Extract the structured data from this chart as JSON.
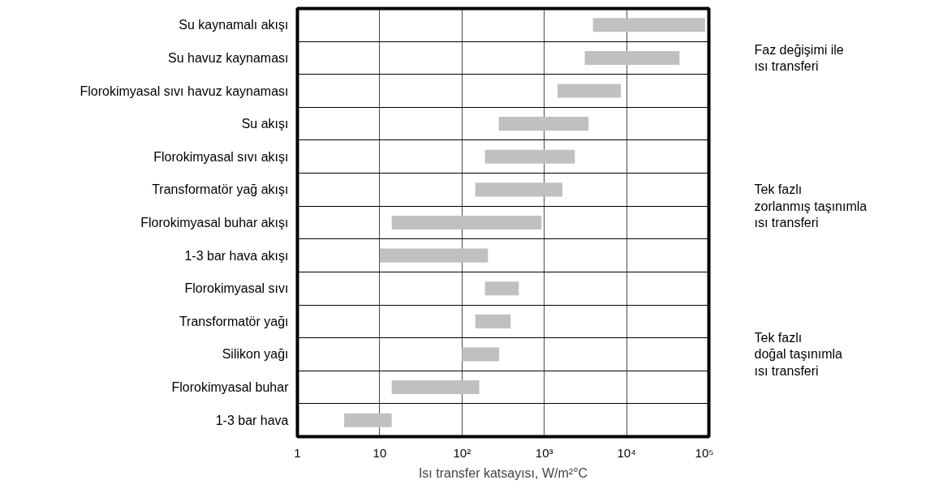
{
  "chart_data": {
    "type": "bar",
    "orientation": "horizontal",
    "log": "x",
    "xlabel": "Isı transfer katsayısı, W/m²°C",
    "categories": [
      "Su kaynamalı akışı",
      "Su havuz kaynaması",
      "Florokimyasal sıvı havuz kaynaması",
      "Su akışı",
      "Florokimyasal sıvı akışı",
      "Transformatör yağ akışı",
      "Florokimyasal buhar akışı",
      "1-3 bar hava akışı",
      "Florokimyasal sıvı",
      "Transformatör yağı",
      "Silikon yağı",
      "Florokimyasal buhar",
      "1-3 bar hava"
    ],
    "base": [
      3900,
      3100,
      1450,
      280,
      190,
      145,
      14,
      10,
      190,
      145,
      100,
      14,
      3.7
    ],
    "values": [
      86100,
      40900,
      7050,
      3170,
      2160,
      1515,
      911,
      197,
      300,
      245,
      183,
      148,
      10.3
    ],
    "color": "#c0c0c0",
    "xlim": [
      1,
      100000
    ],
    "xticks": [
      1,
      10,
      {
        "value": 100,
        "label": "10²"
      },
      {
        "value": 1000,
        "label": "10³"
      },
      {
        "value": 10000,
        "label": "10⁴"
      },
      {
        "value": 100000,
        "label": "10⁵"
      }
    ],
    "grid": true,
    "annotations": [
      "Faz değişimi ile\nısı transferi",
      "Tek fazlı\nzorlanmış taşınımla\nısı transferi",
      "Tek fazlı\ndoğal taşınımla\nısı transferi"
    ]
  }
}
